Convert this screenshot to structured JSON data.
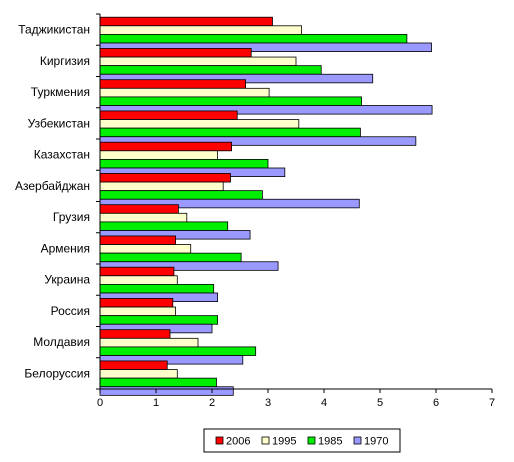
{
  "chart_data": {
    "type": "bar",
    "orientation": "horizontal",
    "categories": [
      "Таджикистан",
      "Киргизия",
      "Туркмения",
      "Узбекистан",
      "Казахстан",
      "Азербайджан",
      "Грузия",
      "Армения",
      "Украина",
      "Россия",
      "Молдавия",
      "Белоруссия"
    ],
    "series": [
      {
        "name": "2006",
        "color": "#ff0000",
        "values": [
          3.08,
          2.7,
          2.6,
          2.45,
          2.35,
          2.33,
          1.4,
          1.35,
          1.32,
          1.3,
          1.25,
          1.2
        ]
      },
      {
        "name": "1995",
        "color": "#ffffcc",
        "values": [
          3.6,
          3.5,
          3.02,
          3.55,
          2.1,
          2.2,
          1.55,
          1.62,
          1.38,
          1.35,
          1.75,
          1.38
        ]
      },
      {
        "name": "1985",
        "color": "#00ee00",
        "values": [
          5.48,
          3.95,
          4.67,
          4.65,
          3.0,
          2.9,
          2.28,
          2.52,
          2.03,
          2.1,
          2.78,
          2.08
        ]
      },
      {
        "name": "1970",
        "color": "#9999ff",
        "values": [
          5.92,
          4.87,
          5.93,
          5.64,
          3.3,
          4.63,
          2.68,
          3.18,
          2.1,
          2.0,
          2.55,
          2.38
        ]
      }
    ],
    "xlim": [
      0,
      7
    ],
    "xticks": [
      "0",
      "1",
      "2",
      "3",
      "4",
      "5",
      "6",
      "7"
    ],
    "legend": {
      "placement": "bottom",
      "entries": [
        "2006",
        "1995",
        "1985",
        "1970"
      ]
    },
    "grid": false
  }
}
